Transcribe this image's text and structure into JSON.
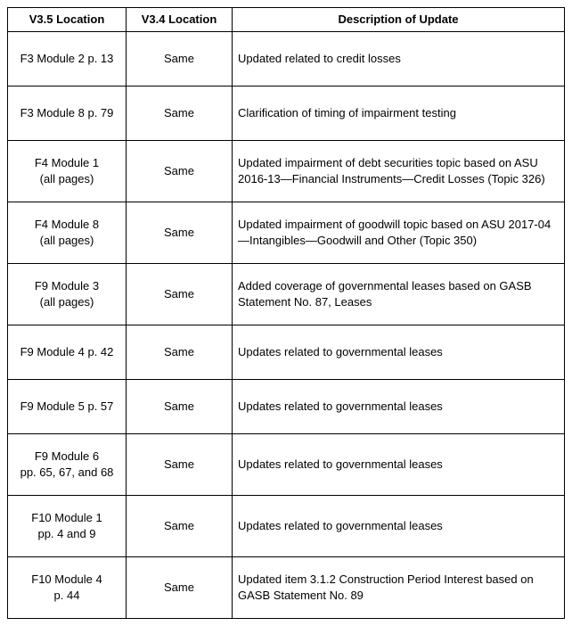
{
  "table": {
    "columns": [
      "V3.5 Location",
      "V3.4 Location",
      "Description of Update"
    ],
    "rows": [
      {
        "loc": "F3 Module 2 p. 13",
        "v34": "Same",
        "desc": "Updated related to credit losses",
        "tall": false
      },
      {
        "loc": "F3 Module 8 p. 79",
        "v34": "Same",
        "desc": "Clarification of timing of impairment testing",
        "tall": false
      },
      {
        "loc": "F4 Module 1\n(all pages)",
        "v34": "Same",
        "desc": "Updated impairment of debt securities topic based on ASU 2016-13—Financial Instruments—Credit Losses (Topic 326)",
        "tall": true
      },
      {
        "loc": "F4 Module 8\n(all pages)",
        "v34": "Same",
        "desc": "Updated impairment of goodwill topic based on ASU 2017-04—Intangibles—Goodwill and Other (Topic 350)",
        "tall": true
      },
      {
        "loc": "F9  Module 3\n(all pages)",
        "v34": "Same",
        "desc": "Added coverage of governmental leases based on GASB Statement No. 87, Leases",
        "tall": true
      },
      {
        "loc": "F9 Module 4 p. 42",
        "v34": "Same",
        "desc": "Updates related to governmental leases",
        "tall": false
      },
      {
        "loc": "F9 Module 5 p. 57",
        "v34": "Same",
        "desc": "Updates related to governmental leases",
        "tall": false
      },
      {
        "loc": "F9 Module 6\npp. 65, 67, and 68",
        "v34": "Same",
        "desc": "Updates related to governmental leases",
        "tall": true
      },
      {
        "loc": "F10 Module 1\npp. 4 and 9",
        "v34": "Same",
        "desc": "Updates related to governmental leases",
        "tall": true
      },
      {
        "loc": "F10 Module 4\np. 44",
        "v34": "Same",
        "desc": "Updated item 3.1.2 Construction Period Interest based on GASB Statement No. 89",
        "tall": true
      }
    ]
  }
}
